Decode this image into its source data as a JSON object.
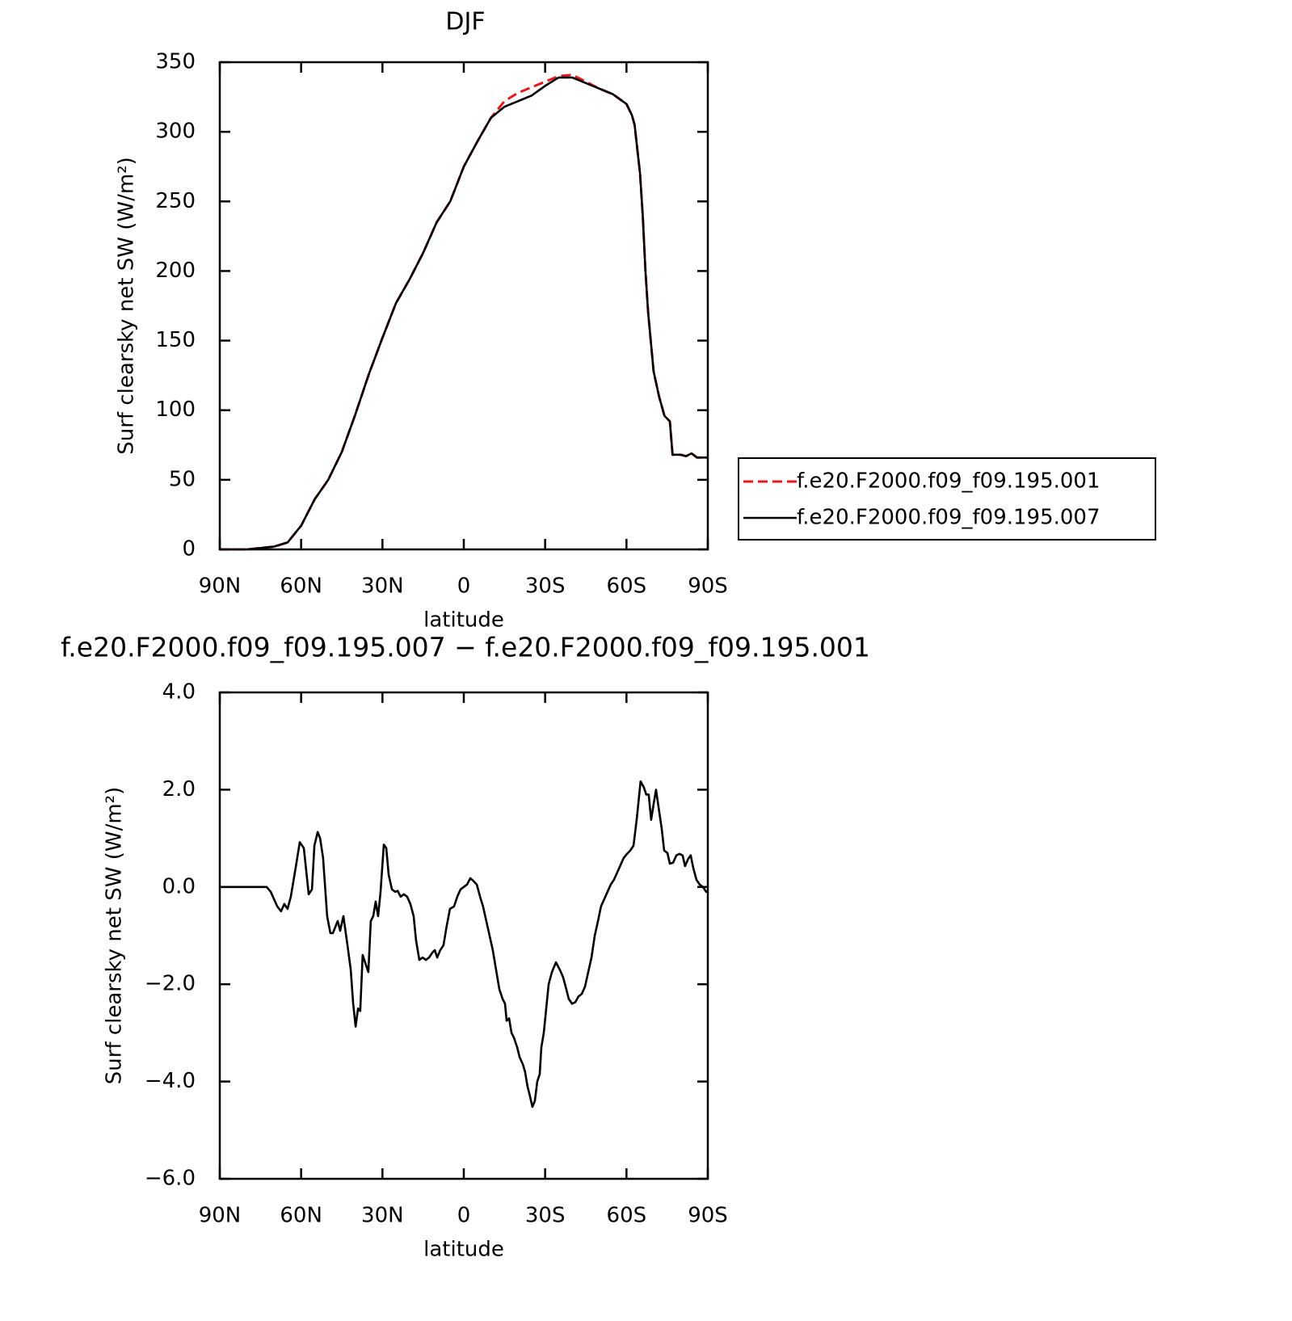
{
  "chart_data": [
    {
      "type": "line",
      "title": "DJF",
      "x_label": "latitude",
      "y_label": "Surf clearsky net SW (W/m²)",
      "x": [
        90,
        85,
        80,
        75,
        70,
        65,
        60,
        55,
        50,
        45,
        40,
        35,
        30,
        25,
        20,
        15,
        10,
        5,
        0,
        -5,
        -10,
        -15,
        -20,
        -25,
        -30,
        -35,
        -40,
        -45,
        -50,
        -55,
        -60,
        -62,
        -63,
        -65,
        -66,
        -67,
        -68,
        -70,
        -72,
        -74,
        -76,
        -77,
        -80,
        -82,
        -84,
        -86,
        -90
      ],
      "series": [
        {
          "name": "f.e20.F2000.f09_f09.195.001",
          "color": "#e41a1c",
          "dash": true,
          "values": [
            0,
            0,
            0,
            1,
            2,
            5,
            17,
            36,
            50,
            70,
            97,
            126,
            152,
            177,
            194,
            213,
            235,
            250,
            275,
            293,
            310,
            322,
            328,
            332,
            336,
            340,
            341,
            336,
            331,
            327,
            320,
            312,
            305,
            270,
            240,
            200,
            170,
            128,
            110,
            96,
            92,
            68,
            68,
            67,
            69,
            66,
            66
          ]
        },
        {
          "name": "f.e20.F2000.f09_f09.195.007",
          "color": "#000000",
          "dash": false,
          "values": [
            0,
            0,
            0,
            1,
            2,
            5,
            17,
            36,
            50,
            70,
            97,
            126,
            152,
            177,
            194,
            213,
            235,
            250,
            275,
            293,
            310,
            318,
            322,
            326,
            333,
            339,
            339,
            335,
            331,
            327,
            320,
            312,
            305,
            270,
            240,
            200,
            170,
            128,
            110,
            96,
            92,
            68,
            68,
            67,
            69,
            66,
            66
          ]
        }
      ],
      "xlim": [
        90,
        -90
      ],
      "xticks": [
        {
          "value": 90,
          "label": "90N"
        },
        {
          "value": 60,
          "label": "60N"
        },
        {
          "value": 30,
          "label": "30N"
        },
        0,
        {
          "value": -30,
          "label": "30S"
        },
        {
          "value": -60,
          "label": "60S"
        },
        {
          "value": -90,
          "label": "90S"
        }
      ],
      "ylim": [
        0,
        350
      ],
      "yticks": [
        0,
        50,
        100,
        150,
        200,
        250,
        300,
        350
      ],
      "grid": false,
      "legend": "right"
    },
    {
      "type": "line",
      "title": "f.e20.F2000.f09_f09.195.007 − f.e20.F2000.f09_f09.195.001",
      "x_label": "latitude",
      "y_label": "Surf clearsky net SW (W/m²)",
      "x": [
        90,
        85,
        80,
        75,
        72.7,
        71.2,
        68.8,
        67.4,
        66.2,
        65,
        63.8,
        62,
        60.5,
        59,
        57.2,
        56,
        55.1,
        53.9,
        53,
        51.9,
        50.4,
        49.2,
        48.3,
        46.5,
        45.6,
        44.4,
        42.9,
        41.7,
        40.8,
        39.9,
        39,
        38.2,
        37.3,
        36.4,
        35.2,
        34.3,
        33.4,
        32.5,
        31.6,
        30.7,
        29.5,
        28.6,
        27.7,
        26.5,
        25.3,
        24.4,
        23.3,
        22.1,
        20.9,
        19.7,
        18.5,
        17.6,
        16.4,
        15.2,
        14,
        12.8,
        11.6,
        10.7,
        9.8,
        8.7,
        7.5,
        6.3,
        5.1,
        3.6,
        2.4,
        1.2,
        0,
        -1.2,
        -2.4,
        -3.6,
        -4.8,
        -6,
        -7.1,
        -8.3,
        -9.5,
        -10.7,
        -11.9,
        -13.1,
        -14.3,
        -15.2,
        -15.8,
        -16.7,
        -17.6,
        -18.5,
        -19.7,
        -20.6,
        -21.8,
        -22.6,
        -23.5,
        -24.4,
        -25.3,
        -26.2,
        -27.1,
        -28,
        -28.6,
        -29.5,
        -30.4,
        -31.3,
        -32.5,
        -34,
        -35.4,
        -36.6,
        -37.8,
        -38.7,
        -39.9,
        -41.1,
        -42.3,
        -43.5,
        -44.7,
        -45.9,
        -47.1,
        -48.3,
        -49.5,
        -50.6,
        -51.8,
        -53,
        -54.2,
        -55.4,
        -56.6,
        -57.8,
        -59,
        -60.2,
        -61.4,
        -62.6,
        -63.8,
        -65.2,
        -66.4,
        -67.3,
        -68.2,
        -69.1,
        -70,
        -70.9,
        -71.8,
        -73,
        -73.9,
        -75.1,
        -76,
        -77.2,
        -78.4,
        -79.5,
        -80.7,
        -81.6,
        -82.8,
        -83.7,
        -84.6,
        -85.8,
        -87,
        -88.2,
        -89.4,
        -90
      ],
      "series": [
        {
          "color": "#000000",
          "dash": false,
          "values": [
            0,
            0,
            0,
            0,
            0,
            -0.1,
            -0.4,
            -0.5,
            -0.35,
            -0.45,
            -0.2,
            0.4,
            0.92,
            0.8,
            -0.15,
            -0.05,
            0.85,
            1.13,
            1.0,
            0.6,
            -0.6,
            -0.95,
            -0.95,
            -0.7,
            -0.9,
            -0.6,
            -1.2,
            -1.7,
            -2.4,
            -2.87,
            -2.5,
            -2.55,
            -1.4,
            -1.55,
            -1.75,
            -0.7,
            -0.6,
            -0.3,
            -0.6,
            -0.1,
            0.87,
            0.8,
            0.25,
            -0.05,
            -0.1,
            -0.08,
            -0.2,
            -0.15,
            -0.2,
            -0.35,
            -0.6,
            -1.1,
            -1.5,
            -1.45,
            -1.5,
            -1.45,
            -1.35,
            -1.3,
            -1.45,
            -1.3,
            -1.2,
            -0.8,
            -0.45,
            -0.4,
            -0.2,
            -0.05,
            0,
            0.05,
            0.18,
            0.12,
            0.05,
            -0.2,
            -0.4,
            -0.7,
            -1.0,
            -1.3,
            -1.7,
            -2.1,
            -2.3,
            -2.4,
            -2.75,
            -2.7,
            -3.0,
            -3.1,
            -3.3,
            -3.5,
            -3.65,
            -3.8,
            -4.1,
            -4.3,
            -4.52,
            -4.4,
            -4.0,
            -3.85,
            -3.3,
            -3.0,
            -2.5,
            -2.0,
            -1.75,
            -1.55,
            -1.7,
            -1.85,
            -2.1,
            -2.3,
            -2.4,
            -2.37,
            -2.25,
            -2.2,
            -2.05,
            -1.75,
            -1.45,
            -1.0,
            -0.7,
            -0.4,
            -0.25,
            -0.1,
            0.05,
            0.15,
            0.3,
            0.45,
            0.6,
            0.68,
            0.75,
            0.85,
            1.4,
            2.17,
            2.05,
            1.9,
            1.9,
            1.38,
            1.7,
            2.0,
            1.65,
            1.2,
            0.75,
            0.7,
            0.48,
            0.5,
            0.65,
            0.68,
            0.65,
            0.43,
            0.58,
            0.65,
            0.4,
            0.15,
            0.05,
            0,
            -0.1,
            -0.08
          ]
        }
      ],
      "xlim": [
        90,
        -90
      ],
      "xticks": [
        {
          "value": 90,
          "label": "90N"
        },
        {
          "value": 60,
          "label": "60N"
        },
        {
          "value": 30,
          "label": "30N"
        },
        0,
        {
          "value": -30,
          "label": "30S"
        },
        {
          "value": -60,
          "label": "60S"
        },
        {
          "value": -90,
          "label": "90S"
        }
      ],
      "ylim": [
        -6,
        4
      ],
      "yticks": [
        {
          "value": -6,
          "label": "−6.0"
        },
        {
          "value": -4,
          "label": "−4.0"
        },
        {
          "value": -2,
          "label": "−2.0"
        },
        {
          "value": 0,
          "label": "0.0"
        },
        {
          "value": 2,
          "label": "2.0"
        },
        {
          "value": 4,
          "label": "4.0"
        }
      ],
      "grid": false
    }
  ]
}
